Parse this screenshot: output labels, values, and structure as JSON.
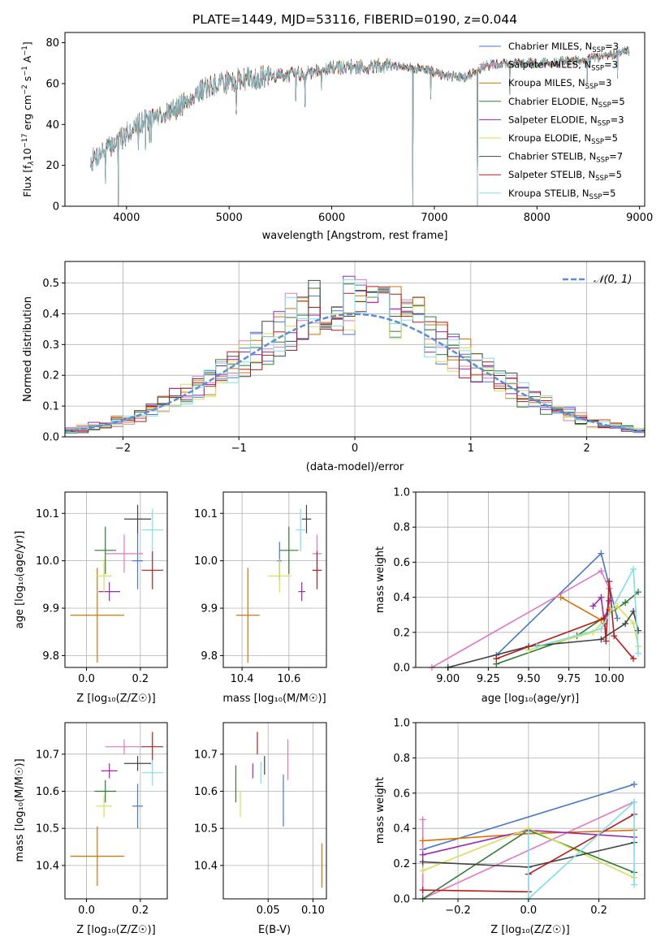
{
  "figure": {
    "title": "PLATE=1449, MJD=53116, FIBERID=0190, z=0.044"
  },
  "legend_entries": [
    {
      "base": "Chabrier MILES, N",
      "sub": "SSP",
      "tail": "=3",
      "color": "#4a78c8"
    },
    {
      "base": "Salpeter MILES, N",
      "sub": "SSP",
      "tail": "=3",
      "color": "#e377c2"
    },
    {
      "base": "Kroupa MILES, N",
      "sub": "SSP",
      "tail": "=3",
      "color": "#d97000"
    },
    {
      "base": "Chabrier ELODIE, N",
      "sub": "SSP",
      "tail": "=5",
      "color": "#2e7d32"
    },
    {
      "base": "Salpeter ELODIE, N",
      "sub": "SSP",
      "tail": "=3",
      "color": "#9c27b0"
    },
    {
      "base": "Kroupa ELODIE, N",
      "sub": "SSP",
      "tail": "=5",
      "color": "#d4e157"
    },
    {
      "base": "Chabrier STELIB, N",
      "sub": "SSP",
      "tail": "=7",
      "color": "#444444"
    },
    {
      "base": "Salpeter STELIB, N",
      "sub": "SSP",
      "tail": "=5",
      "color": "#b71c1c"
    },
    {
      "base": "Kroupa STELIB, N",
      "sub": "SSP",
      "tail": "=5",
      "color": "#80deea"
    }
  ],
  "chart_data": [
    {
      "id": "spectrum",
      "type": "line",
      "title": "PLATE=1449, MJD=53116, FIBERID=0190, z=0.044",
      "xlabel": "wavelength [Angstrom, rest frame]",
      "ylabel_parts": {
        "a": "Flux [f",
        "b": "λ",
        "c": "10",
        "d": "−17",
        "e": " erg cm",
        "f": "−2",
        "g": " s",
        "h": "−1",
        "i": " A",
        "j": "−1",
        "k": "]"
      },
      "xlim": [
        3400,
        9050
      ],
      "ylim": [
        0,
        85
      ],
      "xticks": [
        4000,
        5000,
        6000,
        7000,
        8000,
        9000
      ],
      "yticks": [
        0,
        20,
        40,
        60,
        80
      ],
      "envelope": {
        "x": [
          3650,
          3800,
          3950,
          4100,
          4300,
          4500,
          4700,
          4900,
          5100,
          5300,
          5500,
          5700,
          5900,
          6100,
          6300,
          6500,
          6700,
          6900,
          7100,
          7300,
          7500,
          7700,
          7900,
          8100,
          8300,
          8500,
          8700,
          8900
        ],
        "y": [
          22,
          28,
          33,
          40,
          44,
          48,
          56,
          60,
          62,
          63,
          64,
          65,
          67,
          68,
          68,
          69,
          68,
          67,
          64,
          63,
          69,
          70,
          70,
          70,
          71,
          72,
          74,
          76
        ]
      },
      "dropouts": [
        {
          "x": 3920,
          "y": 0
        },
        {
          "x": 6790,
          "y": 0
        },
        {
          "x": 7420,
          "y": 0
        }
      ],
      "legend": "right"
    },
    {
      "id": "residual-histogram",
      "type": "histogram",
      "xlabel": "(data-model)/error",
      "ylabel": "Normed distribution",
      "xlim": [
        -2.5,
        2.5
      ],
      "ylim": [
        0,
        0.57
      ],
      "xticks": [
        -2,
        -1,
        0,
        1,
        2
      ],
      "yticks": [
        0.0,
        0.1,
        0.2,
        0.3,
        0.4,
        0.5
      ],
      "bin_width": 0.1,
      "reference": {
        "name": "𝒩(0, 1)",
        "mean": 0,
        "sigma": 1,
        "color": "#5b8ed6"
      },
      "legend": "top-right"
    },
    {
      "id": "age-vs-Z",
      "type": "errorbar",
      "xlabel": "Z [log₁₀(Z/Z☉)]",
      "ylabel": "age  [log₁₀(age/yr)]",
      "xlim": [
        -0.08,
        0.3
      ],
      "ylim": [
        9.775,
        10.145
      ],
      "xticks": [
        0.0,
        0.2
      ],
      "yticks": [
        9.8,
        9.9,
        10.0,
        10.1
      ],
      "points": [
        {
          "model": 2,
          "x": 0.04,
          "y": 9.885,
          "xerr": 0.1,
          "yerr": 0.1
        },
        {
          "model": 0,
          "x": 0.19,
          "y": 10.0,
          "xerr": 0.02,
          "yerr": 0.06
        },
        {
          "model": 1,
          "x": 0.14,
          "y": 10.015,
          "xerr": 0.07,
          "yerr": 0.04
        },
        {
          "model": 3,
          "x": 0.07,
          "y": 10.022,
          "xerr": 0.04,
          "yerr": 0.05
        },
        {
          "model": 4,
          "x": 0.085,
          "y": 9.935,
          "xerr": 0.04,
          "yerr": 0.02
        },
        {
          "model": 5,
          "x": 0.065,
          "y": 9.968,
          "xerr": 0.03,
          "yerr": 0.035
        },
        {
          "model": 6,
          "x": 0.19,
          "y": 10.088,
          "xerr": 0.05,
          "yerr": 0.03
        },
        {
          "model": 7,
          "x": 0.245,
          "y": 9.98,
          "xerr": 0.04,
          "yerr": 0.04
        },
        {
          "model": 8,
          "x": 0.245,
          "y": 10.065,
          "xerr": 0.04,
          "yerr": 0.045
        }
      ]
    },
    {
      "id": "age-vs-mass",
      "type": "errorbar",
      "xlabel": "mass [log₁₀(M/M☉)]",
      "ylabel": "",
      "xlim": [
        10.32,
        10.76
      ],
      "ylim": [
        9.775,
        10.145
      ],
      "xticks": [
        10.4,
        10.6
      ],
      "yticks": [
        9.8,
        9.9,
        10.0,
        10.1
      ],
      "points": [
        {
          "model": 2,
          "x": 10.425,
          "y": 9.885,
          "xerr": 0.05,
          "yerr": 0.1
        },
        {
          "model": 0,
          "x": 10.56,
          "y": 10.0,
          "xerr": 0.01,
          "yerr": 0.04
        },
        {
          "model": 1,
          "x": 10.72,
          "y": 10.015,
          "xerr": 0.02,
          "yerr": 0.04
        },
        {
          "model": 3,
          "x": 10.6,
          "y": 10.022,
          "xerr": 0.04,
          "yerr": 0.05
        },
        {
          "model": 4,
          "x": 10.655,
          "y": 9.935,
          "xerr": 0.015,
          "yerr": 0.02
        },
        {
          "model": 5,
          "x": 10.56,
          "y": 9.968,
          "xerr": 0.05,
          "yerr": 0.035
        },
        {
          "model": 6,
          "x": 10.675,
          "y": 10.088,
          "xerr": 0.02,
          "yerr": 0.03
        },
        {
          "model": 7,
          "x": 10.72,
          "y": 9.98,
          "xerr": 0.02,
          "yerr": 0.04
        },
        {
          "model": 8,
          "x": 10.65,
          "y": 10.065,
          "xerr": 0.02,
          "yerr": 0.045
        }
      ]
    },
    {
      "id": "mass-vs-Z",
      "type": "errorbar",
      "xlabel": "Z [log₁₀(Z/Z☉)]",
      "ylabel": "mass [log₁₀(M/M☉)]",
      "xlim": [
        -0.08,
        0.3
      ],
      "ylim": [
        10.31,
        10.785
      ],
      "xticks": [
        0.0,
        0.2
      ],
      "yticks": [
        10.4,
        10.5,
        10.6,
        10.7
      ],
      "points": [
        {
          "model": 2,
          "x": 0.04,
          "y": 10.425,
          "xerr": 0.1,
          "yerr": 0.08
        },
        {
          "model": 0,
          "x": 0.19,
          "y": 10.56,
          "xerr": 0.02,
          "yerr": 0.06
        },
        {
          "model": 1,
          "x": 0.14,
          "y": 10.72,
          "xerr": 0.07,
          "yerr": 0.02
        },
        {
          "model": 3,
          "x": 0.07,
          "y": 10.6,
          "xerr": 0.04,
          "yerr": 0.03
        },
        {
          "model": 4,
          "x": 0.085,
          "y": 10.655,
          "xerr": 0.03,
          "yerr": 0.02
        },
        {
          "model": 5,
          "x": 0.065,
          "y": 10.56,
          "xerr": 0.03,
          "yerr": 0.03
        },
        {
          "model": 6,
          "x": 0.19,
          "y": 10.675,
          "xerr": 0.05,
          "yerr": 0.02
        },
        {
          "model": 7,
          "x": 0.245,
          "y": 10.72,
          "xerr": 0.04,
          "yerr": 0.04
        },
        {
          "model": 8,
          "x": 0.245,
          "y": 10.65,
          "xerr": 0.04,
          "yerr": 0.035
        }
      ]
    },
    {
      "id": "mass-vs-EBV",
      "type": "errorbar",
      "xlabel": "E(B-V)",
      "ylabel": "",
      "xlim": [
        0.0,
        0.115
      ],
      "ylim": [
        10.31,
        10.785
      ],
      "xticks": [
        0.05,
        0.1
      ],
      "yticks": [
        10.4,
        10.5,
        10.6,
        10.7
      ],
      "points": [
        {
          "model": 2,
          "x": 0.11,
          "y": 10.4,
          "xerr": 0.0,
          "yerr": 0.06
        },
        {
          "model": 0,
          "x": 0.067,
          "y": 10.575,
          "xerr": 0.0,
          "yerr": 0.07
        },
        {
          "model": 1,
          "x": 0.072,
          "y": 10.685,
          "xerr": 0.0,
          "yerr": 0.055
        },
        {
          "model": 3,
          "x": 0.014,
          "y": 10.62,
          "xerr": 0.0,
          "yerr": 0.05
        },
        {
          "model": 4,
          "x": 0.033,
          "y": 10.655,
          "xerr": 0.0,
          "yerr": 0.02
        },
        {
          "model": 5,
          "x": 0.019,
          "y": 10.565,
          "xerr": 0.0,
          "yerr": 0.035
        },
        {
          "model": 6,
          "x": 0.046,
          "y": 10.67,
          "xerr": 0.0,
          "yerr": 0.025
        },
        {
          "model": 7,
          "x": 0.038,
          "y": 10.73,
          "xerr": 0.0,
          "yerr": 0.03
        },
        {
          "model": 8,
          "x": 0.042,
          "y": 10.65,
          "xerr": 0.0,
          "yerr": 0.03
        }
      ]
    },
    {
      "id": "mass-weight-vs-age",
      "type": "line",
      "xlabel": "age  [log₁₀(age/yr)]",
      "ylabel": "mass weight",
      "xlim": [
        8.8,
        10.22
      ],
      "ylim": [
        0,
        1.0
      ],
      "xticks": [
        9.0,
        9.25,
        9.5,
        9.75,
        10.0
      ],
      "yticks": [
        0.0,
        0.2,
        0.4,
        0.6,
        0.8,
        1.0
      ],
      "series": [
        {
          "model": 0,
          "x": [
            9.3,
            9.95,
            10.05
          ],
          "y": [
            0.07,
            0.65,
            0.28
          ]
        },
        {
          "model": 1,
          "x": [
            8.9,
            9.95,
            10.0
          ],
          "y": [
            0.0,
            0.55,
            0.45
          ]
        },
        {
          "model": 2,
          "x": [
            9.7,
            9.95,
            10.0
          ],
          "y": [
            0.4,
            0.27,
            0.33
          ]
        },
        {
          "model": 3,
          "x": [
            9.3,
            9.8,
            10.1,
            10.18
          ],
          "y": [
            0.02,
            0.18,
            0.37,
            0.43
          ]
        },
        {
          "model": 4,
          "x": [
            9.9,
            9.95,
            9.97,
            10.0
          ],
          "y": [
            0.35,
            0.4,
            0.25,
            0.38
          ]
        },
        {
          "model": 5,
          "x": [
            9.5,
            9.9,
            10.05,
            10.15,
            10.18
          ],
          "y": [
            0.1,
            0.2,
            0.35,
            0.25,
            0.12
          ]
        },
        {
          "model": 6,
          "x": [
            9.0,
            9.5,
            9.95,
            10.1,
            10.15,
            10.18
          ],
          "y": [
            0.0,
            0.12,
            0.16,
            0.25,
            0.32,
            0.21
          ]
        },
        {
          "model": 7,
          "x": [
            9.3,
            9.97,
            9.98,
            10.0,
            10.03,
            10.15
          ],
          "y": [
            0.05,
            0.28,
            0.15,
            0.49,
            0.18,
            0.05
          ]
        },
        {
          "model": 8,
          "x": [
            9.55,
            9.95,
            10.15,
            10.18
          ],
          "y": [
            0.12,
            0.22,
            0.56,
            0.08
          ]
        }
      ]
    },
    {
      "id": "mass-weight-vs-Z",
      "type": "line",
      "xlabel": "Z [log₁₀(Z/Z☉)]",
      "ylabel": "mass weight",
      "xlim": [
        -0.32,
        0.33
      ],
      "ylim": [
        0,
        1.0
      ],
      "xticks": [
        -0.2,
        0.0,
        0.2
      ],
      "yticks": [
        0.0,
        0.2,
        0.4,
        0.6,
        0.8,
        1.0
      ],
      "series": [
        {
          "model": 0,
          "x": [
            -0.3,
            0.3
          ],
          "y": [
            0.28,
            0.65
          ]
        },
        {
          "model": 1,
          "x": [
            -0.3,
            -0.3,
            0.3
          ],
          "y": [
            0.45,
            0.0,
            0.55
          ]
        },
        {
          "model": 2,
          "x": [
            -0.3,
            0.0,
            0.3
          ],
          "y": [
            0.33,
            0.37,
            0.39
          ]
        },
        {
          "model": 3,
          "x": [
            -0.3,
            0.0,
            0.3
          ],
          "y": [
            0.0,
            0.39,
            0.15
          ]
        },
        {
          "model": 4,
          "x": [
            -0.3,
            0.0,
            0.3
          ],
          "y": [
            0.25,
            0.39,
            0.35
          ]
        },
        {
          "model": 5,
          "x": [
            -0.3,
            0.0,
            0.3
          ],
          "y": [
            0.16,
            0.4,
            0.12
          ]
        },
        {
          "model": 6,
          "x": [
            -0.3,
            0.0,
            0.3
          ],
          "y": [
            0.21,
            0.18,
            0.32
          ]
        },
        {
          "model": 7,
          "x": [
            -0.3,
            0.0,
            0.0,
            0.3
          ],
          "y": [
            0.05,
            0.04,
            0.14,
            0.48
          ]
        },
        {
          "model": 8,
          "x": [
            0.0,
            0.0,
            0.3,
            0.3
          ],
          "y": [
            0.38,
            0.0,
            0.55,
            0.08
          ]
        }
      ]
    }
  ]
}
